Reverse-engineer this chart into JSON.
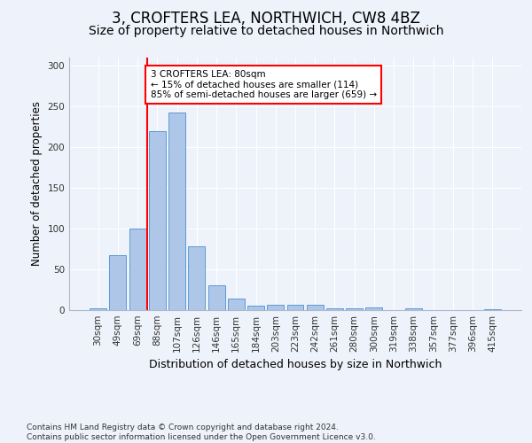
{
  "title": "3, CROFTERS LEA, NORTHWICH, CW8 4BZ",
  "subtitle": "Size of property relative to detached houses in Northwich",
  "xlabel": "Distribution of detached houses by size in Northwich",
  "ylabel": "Number of detached properties",
  "categories": [
    "30sqm",
    "49sqm",
    "69sqm",
    "88sqm",
    "107sqm",
    "126sqm",
    "146sqm",
    "165sqm",
    "184sqm",
    "203sqm",
    "223sqm",
    "242sqm",
    "261sqm",
    "280sqm",
    "300sqm",
    "319sqm",
    "338sqm",
    "357sqm",
    "377sqm",
    "396sqm",
    "415sqm"
  ],
  "values": [
    2,
    67,
    100,
    220,
    243,
    78,
    30,
    14,
    5,
    7,
    7,
    6,
    2,
    2,
    3,
    0,
    2,
    0,
    0,
    0,
    1
  ],
  "bar_color": "#aec6e8",
  "bar_edge_color": "#5b9bd5",
  "vline_color": "red",
  "vline_x_index": 2.5,
  "annotation_text": "3 CROFTERS LEA: 80sqm\n← 15% of detached houses are smaller (114)\n85% of semi-detached houses are larger (659) →",
  "annotation_box_color": "white",
  "annotation_box_edge_color": "red",
  "ylim": [
    0,
    310
  ],
  "yticks": [
    0,
    50,
    100,
    150,
    200,
    250,
    300
  ],
  "footer": "Contains HM Land Registry data © Crown copyright and database right 2024.\nContains public sector information licensed under the Open Government Licence v3.0.",
  "bg_color": "#eef2fb",
  "title_fontsize": 12,
  "subtitle_fontsize": 10,
  "xlabel_fontsize": 9,
  "ylabel_fontsize": 8.5,
  "tick_fontsize": 7.5,
  "footer_fontsize": 6.5,
  "annotation_fontsize": 7.5
}
